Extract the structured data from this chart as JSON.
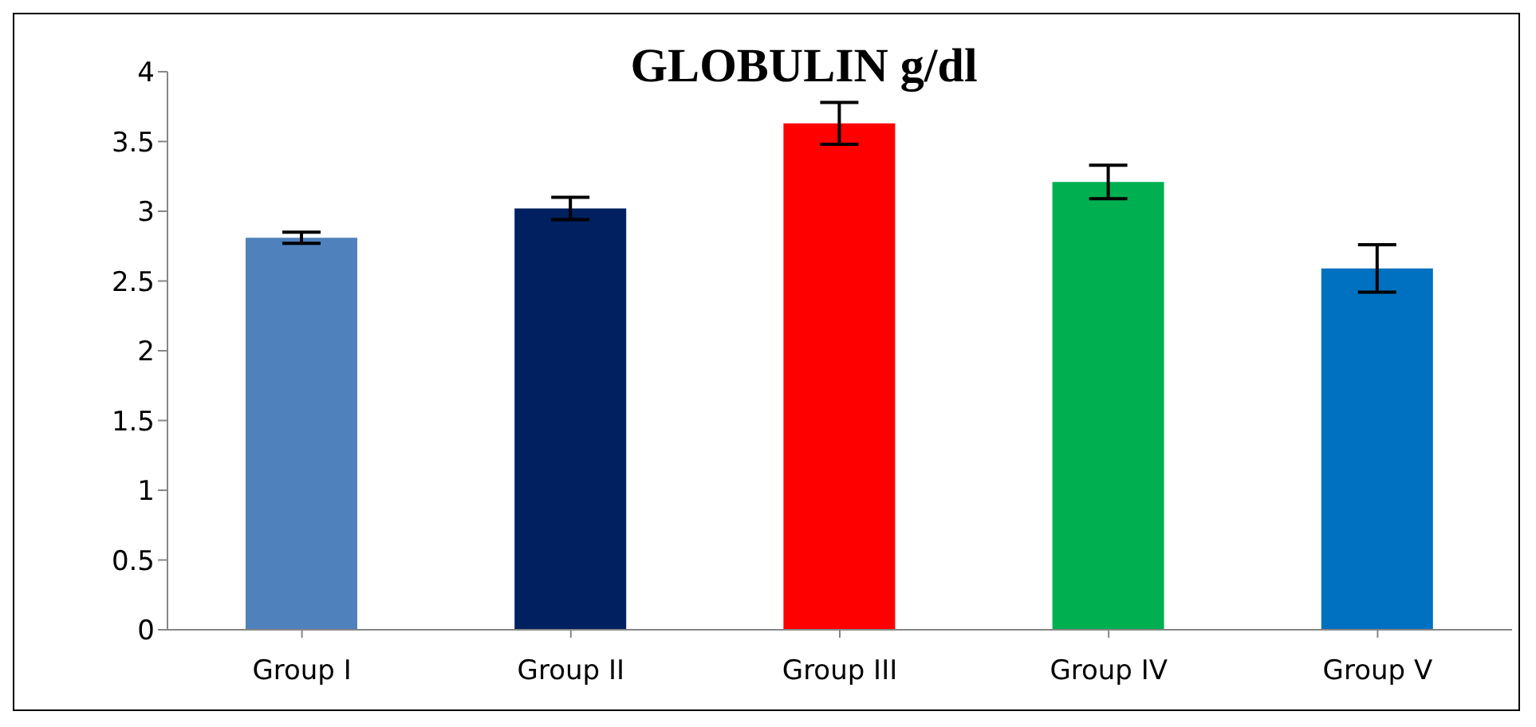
{
  "chart_data": {
    "type": "bar",
    "title": "GLOBULIN g/dl",
    "categories": [
      "Group I",
      "Group II",
      "Group III",
      "Group IV",
      "Group V"
    ],
    "values": [
      2.81,
      3.02,
      3.63,
      3.21,
      2.59
    ],
    "colors": [
      "#4f81bd",
      "#002060",
      "#ff0000",
      "#00b050",
      "#0070c0"
    ],
    "errors": [
      0.04,
      0.08,
      0.15,
      0.12,
      0.17
    ],
    "ylim": [
      0,
      4
    ],
    "yticks": [
      0,
      0.5,
      1,
      1.5,
      2,
      2.5,
      3,
      3.5,
      4
    ],
    "grid": false
  }
}
